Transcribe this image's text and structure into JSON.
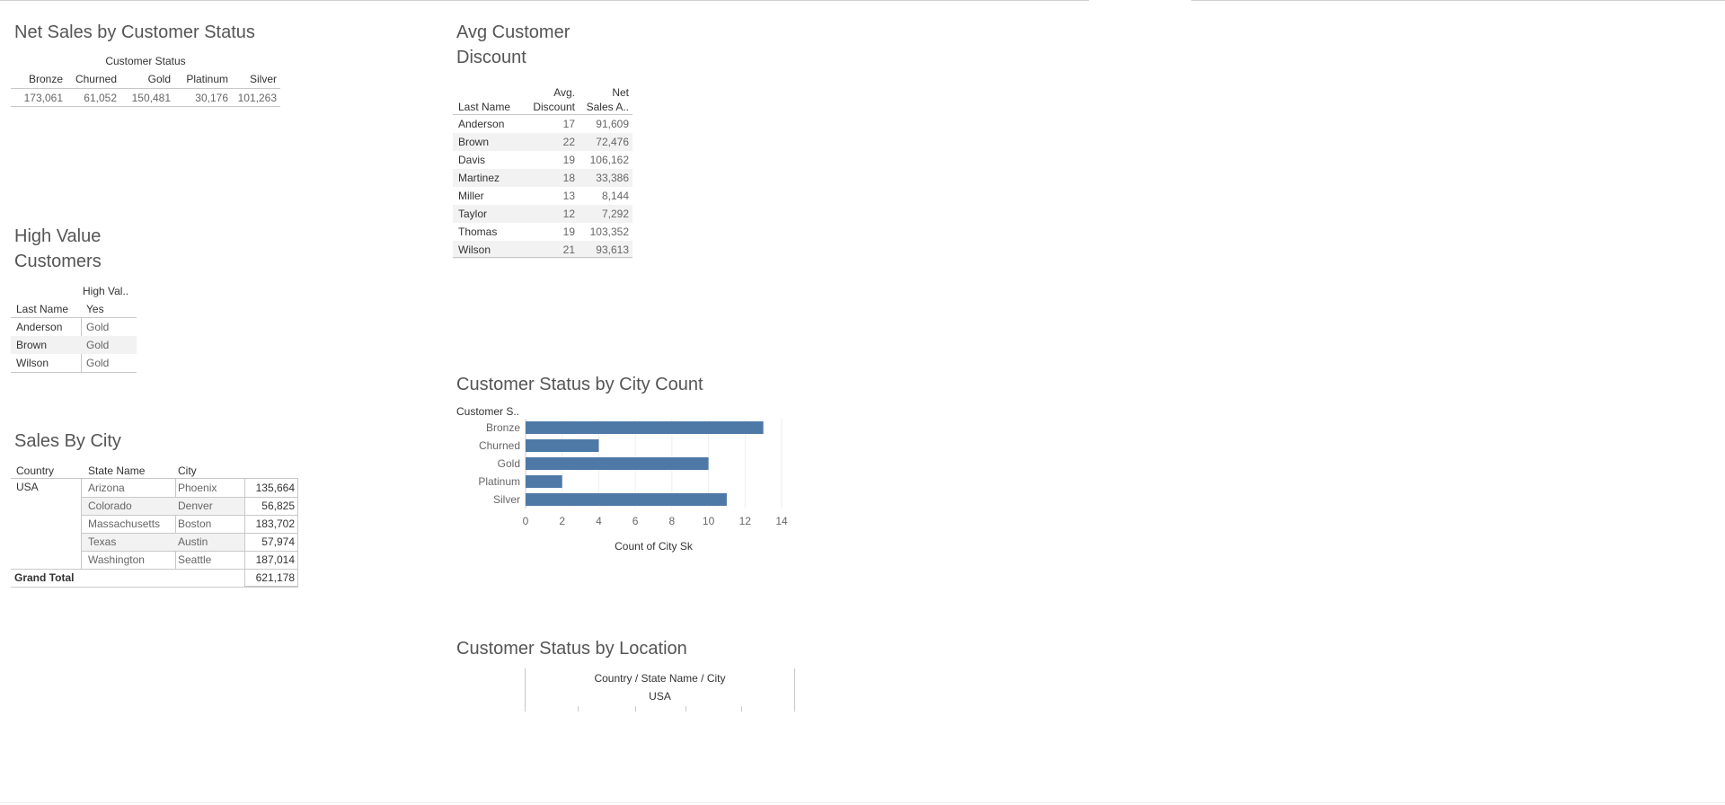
{
  "net_sales": {
    "title": "Net Sales by Customer Status",
    "group_header": "Customer Status",
    "columns": [
      "Bronze",
      "Churned",
      "Gold",
      "Platinum",
      "Silver"
    ],
    "values": [
      "173,061",
      "61,052",
      "150,481",
      "30,176",
      "101,263"
    ]
  },
  "high_value": {
    "title_line1": "High Value",
    "title_line2": "Customers",
    "col_group": "High Val..",
    "row_header": "Last Name",
    "col_header": "Yes",
    "rows": [
      {
        "name": "Anderson",
        "value": "Gold"
      },
      {
        "name": "Brown",
        "value": "Gold"
      },
      {
        "name": "Wilson",
        "value": "Gold"
      }
    ]
  },
  "sales_city": {
    "title": "Sales By City",
    "headers": {
      "country": "Country",
      "state": "State Name",
      "city": "City"
    },
    "country": "USA",
    "rows": [
      {
        "state": "Arizona",
        "city": "Phoenix",
        "value": "135,664"
      },
      {
        "state": "Colorado",
        "city": "Denver",
        "value": "56,825"
      },
      {
        "state": "Massachusetts",
        "city": "Boston",
        "value": "183,702"
      },
      {
        "state": "Texas",
        "city": "Austin",
        "value": "57,974"
      },
      {
        "state": "Washington",
        "city": "Seattle",
        "value": "187,014"
      }
    ],
    "total_label": "Grand Total",
    "total_value": "621,178"
  },
  "avg_discount": {
    "title_line1": "Avg Customer",
    "title_line2": "Discount",
    "headers": {
      "name": "Last Name",
      "disc1": "Avg.",
      "disc2": "Discount",
      "net1": "Net",
      "net2": "Sales A.."
    },
    "rows": [
      {
        "name": "Anderson",
        "disc": "17",
        "net": "91,609"
      },
      {
        "name": "Brown",
        "disc": "22",
        "net": "72,476"
      },
      {
        "name": "Davis",
        "disc": "19",
        "net": "106,162"
      },
      {
        "name": "Martinez",
        "disc": "18",
        "net": "33,386"
      },
      {
        "name": "Miller",
        "disc": "13",
        "net": "8,144"
      },
      {
        "name": "Taylor",
        "disc": "12",
        "net": "7,292"
      },
      {
        "name": "Thomas",
        "disc": "19",
        "net": "103,352"
      },
      {
        "name": "Wilson",
        "disc": "21",
        "net": "93,613"
      }
    ]
  },
  "chart_data": {
    "type": "bar",
    "orientation": "horizontal",
    "title": "Customer Status by City Count",
    "row_header": "Customer S..",
    "categories": [
      "Bronze",
      "Churned",
      "Gold",
      "Platinum",
      "Silver"
    ],
    "values": [
      13,
      4,
      10,
      2,
      11
    ],
    "xlabel": "Count of City Sk",
    "xlim": [
      0,
      14
    ],
    "ticks": [
      "0",
      "2",
      "4",
      "6",
      "8",
      "10",
      "12",
      "14"
    ],
    "grid": true,
    "color": "#4e79a7"
  },
  "location": {
    "title": "Customer Status by Location",
    "header1": "Country / State Name / City",
    "header2": "USA"
  }
}
